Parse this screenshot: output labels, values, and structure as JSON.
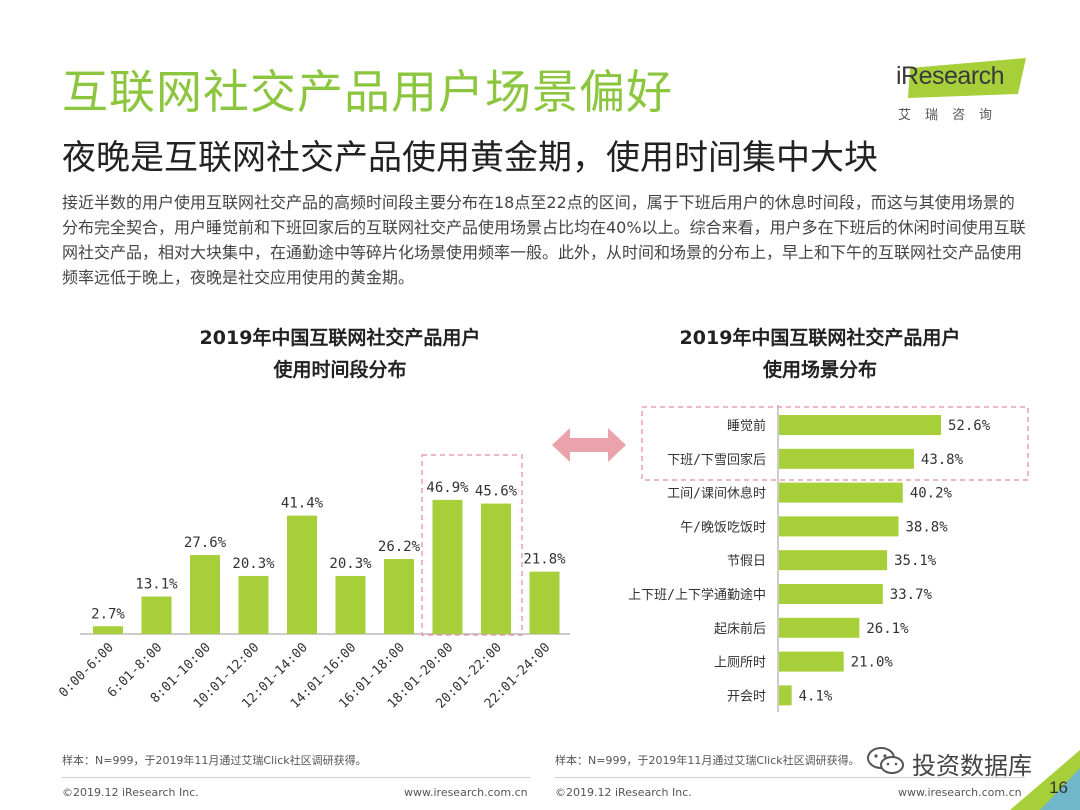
{
  "header": {
    "title": "互联网社交产品用户场景偏好",
    "subtitle": "夜晚是互联网社交产品使用黄金期，使用时间集中大块",
    "paragraph": "接近半数的用户使用互联网社交产品的高频时间段主要分布在18点至22点的区间，属于下班后用户的休息时间段，而这与其使用场景的分布完全契合，用户睡觉前和下班回家后的互联网社交产品使用场景占比均在40%以上。综合来看，用户多在下班后的休闲时间使用互联网社交产品，相对大块集中，在通勤途中等碎片化场景使用频率一般。此外，从时间和场景的分布上，早上和下午的互联网社交产品使用频率远低于晚上，夜晚是社交应用使用的黄金期。"
  },
  "logo": {
    "text": "iResearch",
    "cn": "艾瑞咨询"
  },
  "colors": {
    "accent": "#8cc63f",
    "bar": "#a6cf39",
    "highlight": "#e8a0a8"
  },
  "chart_data": [
    {
      "type": "bar",
      "title_line1": "2019年中国互联网社交产品用户",
      "title_line2": "使用时间段分布",
      "categories": [
        "0:00-6:00",
        "6:01-8:00",
        "8:01-10:00",
        "10:01-12:00",
        "12:01-14:00",
        "14:01-16:00",
        "16:01-18:00",
        "18:01-20:00",
        "20:01-22:00",
        "22:01-24:00"
      ],
      "values": [
        2.7,
        13.1,
        27.6,
        20.3,
        41.4,
        20.3,
        26.2,
        46.9,
        45.6,
        21.8
      ],
      "labels": [
        "2.7%",
        "13.1%",
        "27.6%",
        "20.3%",
        "41.4%",
        "20.3%",
        "26.2%",
        "46.9%",
        "45.6%",
        "21.8%"
      ],
      "highlight": [
        "18:01-20:00",
        "20:01-22:00"
      ],
      "ylim": [
        0,
        50
      ]
    },
    {
      "type": "bar",
      "orientation": "horizontal",
      "title_line1": "2019年中国互联网社交产品用户",
      "title_line2": "使用场景分布",
      "categories": [
        "睡觉前",
        "下班/下雪回家后",
        "工间/课间休息时",
        "午/晚饭吃饭时",
        "节假日",
        "上下班/上下学通勤途中",
        "起床前后",
        "上厕所时",
        "开会时"
      ],
      "values": [
        52.6,
        43.8,
        40.2,
        38.8,
        35.1,
        33.7,
        26.1,
        21.0,
        4.1
      ],
      "labels": [
        "52.6%",
        "43.8%",
        "40.2%",
        "38.8%",
        "35.1%",
        "33.7%",
        "26.1%",
        "21.0%",
        "4.1%"
      ],
      "highlight": [
        "睡觉前",
        "下班/下雪回家后"
      ],
      "xlim": [
        0,
        60
      ]
    }
  ],
  "notes": {
    "left": "样本：N=999，于2019年11月通过艾瑞Click社区调研获得。",
    "right": "样本：N=999，于2019年11月通过艾瑞Click社区调研获得。"
  },
  "footer": {
    "copyright_left": "©2019.12 iResearch Inc.",
    "url_left": "www.iresearch.com.cn",
    "copyright_right": "©2019.12 iResearch Inc.",
    "url_right": "www.iresearch.com.cn",
    "page_number": "16"
  },
  "watermark": {
    "text": "投资数据库",
    "icon": "wechat-icon"
  }
}
